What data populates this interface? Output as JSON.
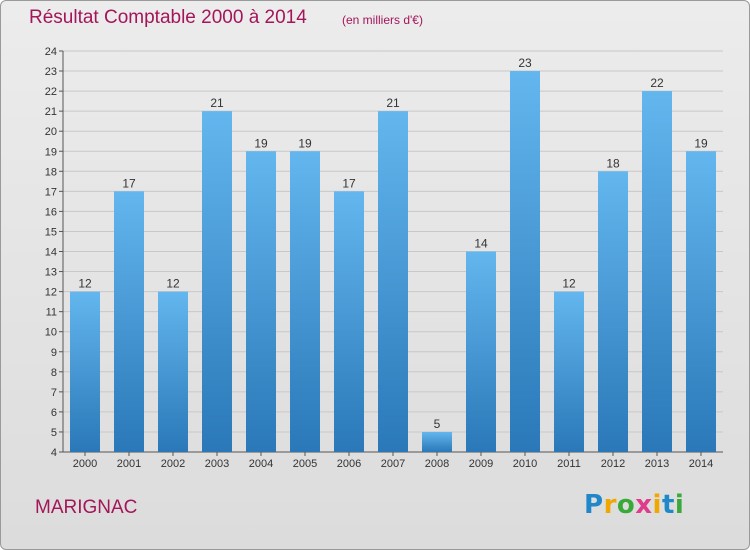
{
  "title": "Résultat Comptable 2000 à 2014",
  "unit": "(en milliers d'€)",
  "city": "MARIGNAC",
  "logo": {
    "letters": [
      "P",
      "r",
      "o",
      "x",
      "i",
      "t",
      "i"
    ],
    "colors": [
      "#1e88c8",
      "#f0a800",
      "#3aa93a",
      "#e03c8c",
      "#f0a800",
      "#1e88c8",
      "#3aa93a"
    ]
  },
  "colors": {
    "bar_top": "#63b6ee",
    "bar_bottom": "#2a78b8",
    "accent": "#a3165a",
    "grid": "#c8c8c8",
    "axis": "#555555"
  },
  "chart_data": {
    "type": "bar",
    "title": "Résultat Comptable 2000 à 2014",
    "xlabel": "",
    "ylabel": "",
    "categories": [
      "2000",
      "2001",
      "2002",
      "2003",
      "2004",
      "2005",
      "2006",
      "2007",
      "2008",
      "2009",
      "2010",
      "2011",
      "2012",
      "2013",
      "2014"
    ],
    "values": [
      12,
      17,
      12,
      21,
      19,
      19,
      17,
      21,
      5,
      14,
      23,
      12,
      18,
      22,
      19
    ],
    "ylim": [
      4,
      24
    ],
    "yticks": [
      4,
      5,
      6,
      7,
      8,
      9,
      10,
      11,
      12,
      13,
      14,
      15,
      16,
      17,
      18,
      19,
      20,
      21,
      22,
      23,
      24
    ],
    "grid": true,
    "legend": "none"
  }
}
